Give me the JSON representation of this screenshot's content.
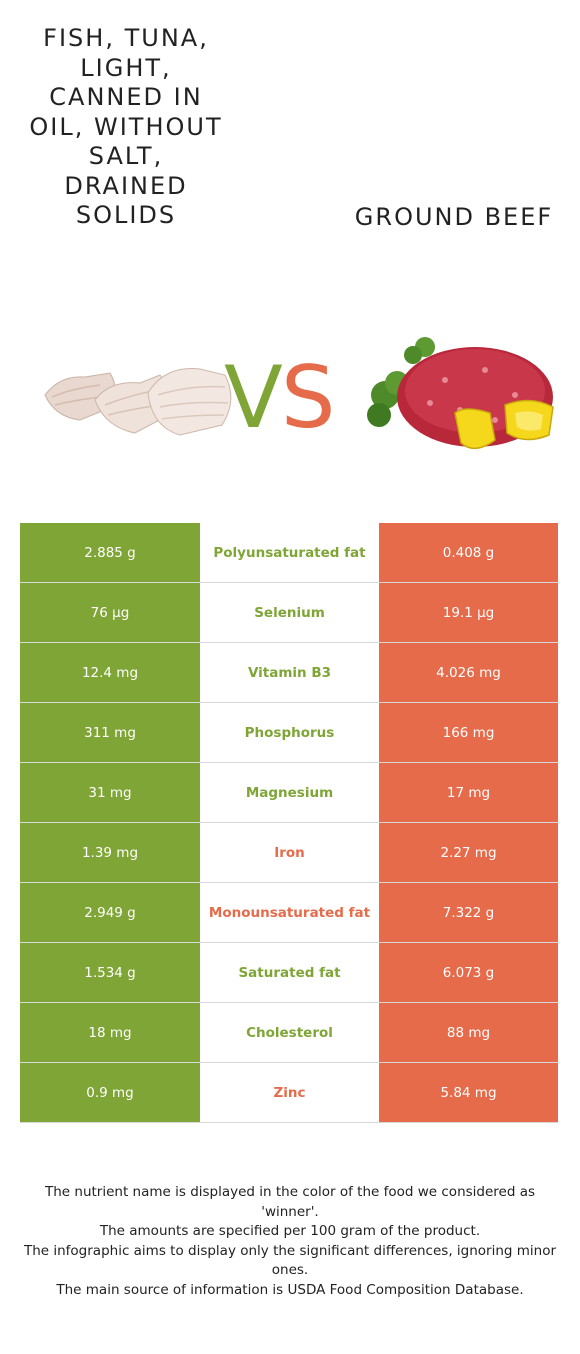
{
  "left_food": {
    "name": "Fish, tuna, light, canned in oil, without salt, drained solids",
    "color": "#7ea535",
    "image_icon": "tuna-pieces-image"
  },
  "right_food": {
    "name": "Ground beef",
    "color": "#e56b4b",
    "image_icon": "ground-beef-with-pepper-image"
  },
  "vs": {
    "v": "V",
    "s": "S"
  },
  "rows": [
    {
      "left": "2.885 g",
      "nutrient": "Polyunsaturated fat",
      "right": "0.408 g",
      "winner": "left"
    },
    {
      "left": "76 µg",
      "nutrient": "Selenium",
      "right": "19.1 µg",
      "winner": "left"
    },
    {
      "left": "12.4 mg",
      "nutrient": "Vitamin B3",
      "right": "4.026 mg",
      "winner": "left"
    },
    {
      "left": "311 mg",
      "nutrient": "Phosphorus",
      "right": "166 mg",
      "winner": "left"
    },
    {
      "left": "31 mg",
      "nutrient": "Magnesium",
      "right": "17 mg",
      "winner": "left"
    },
    {
      "left": "1.39 mg",
      "nutrient": "Iron",
      "right": "2.27 mg",
      "winner": "right"
    },
    {
      "left": "2.949 g",
      "nutrient": "Monounsaturated fat",
      "right": "7.322 g",
      "winner": "right"
    },
    {
      "left": "1.534 g",
      "nutrient": "Saturated fat",
      "right": "6.073 g",
      "winner": "left"
    },
    {
      "left": "18 mg",
      "nutrient": "Cholesterol",
      "right": "88 mg",
      "winner": "left"
    },
    {
      "left": "0.9 mg",
      "nutrient": "Zinc",
      "right": "5.84 mg",
      "winner": "right"
    }
  ],
  "footer": [
    "The nutrient name is displayed in the color of the food we considered as 'winner'.",
    "The amounts are specified per 100 gram of the product.",
    "The infographic aims to display only the significant differences, ignoring minor ones.",
    "The main source of information is USDA Food Composition Database."
  ]
}
